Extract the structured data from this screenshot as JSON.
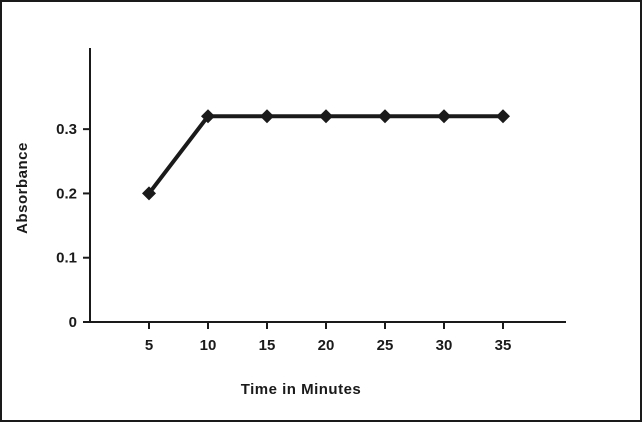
{
  "chart_data": {
    "type": "line",
    "title": "",
    "xlabel": "Time in Minutes",
    "ylabel": "Absorbance",
    "x": [
      5,
      10,
      15,
      20,
      25,
      30,
      35
    ],
    "series": [
      {
        "name": "Absorbance",
        "values": [
          0.2,
          0.32,
          0.32,
          0.32,
          0.32,
          0.32,
          0.32
        ]
      }
    ],
    "x_ticks": [
      5,
      10,
      15,
      20,
      25,
      30,
      35
    ],
    "x_tick_labels": [
      "5",
      "10",
      "15",
      "20",
      "25",
      "30",
      "35"
    ],
    "y_ticks": [
      0,
      0.1,
      0.2,
      0.3
    ],
    "y_tick_labels": [
      "0",
      "0.1",
      "0.2",
      "0.3"
    ],
    "xlim": [
      0,
      40
    ],
    "ylim": [
      0,
      0.42
    ],
    "grid": false,
    "legend": "none",
    "marker": "diamond",
    "marker_size": 7,
    "line_width": 4,
    "line_color": "#1a1a1a",
    "axis_color": "#1a1a1a",
    "background_color": "#ffffff"
  }
}
